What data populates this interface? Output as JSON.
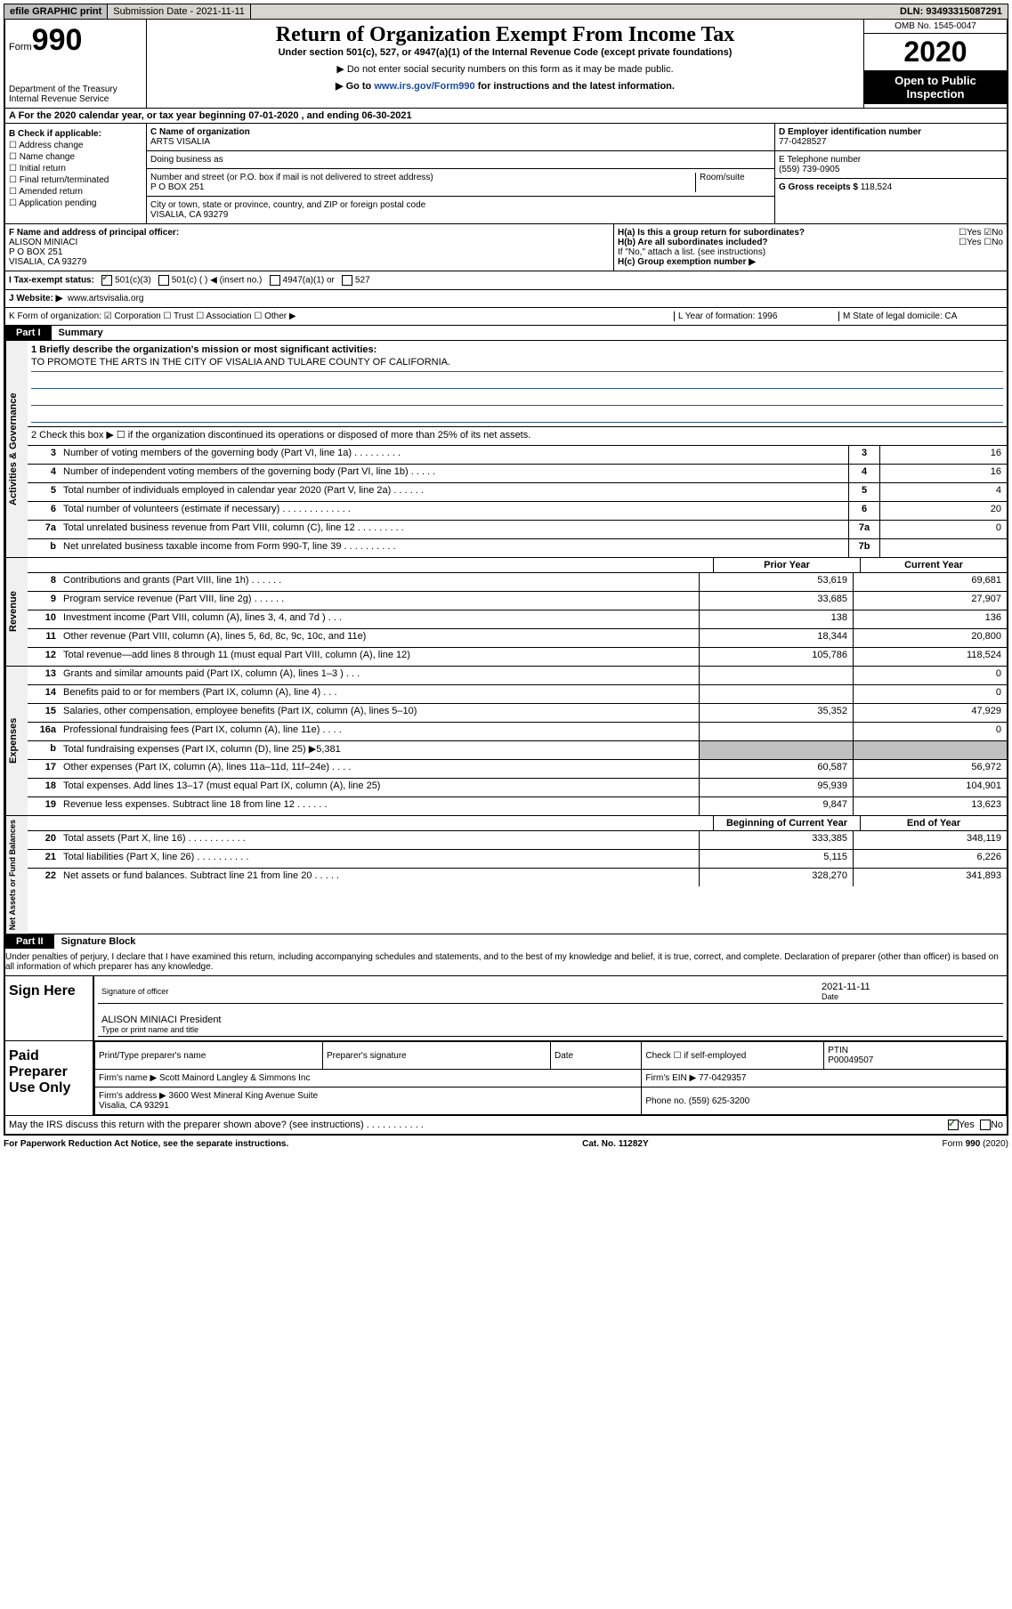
{
  "topbar": {
    "efile": "efile GRAPHIC print",
    "subdate_label": "Submission Date -",
    "subdate": "2021-11-11",
    "dln_label": "DLN:",
    "dln": "93493315087291"
  },
  "header": {
    "form_label": "Form",
    "form_num": "990",
    "dept": "Department of the Treasury\nInternal Revenue Service",
    "title": "Return of Organization Exempt From Income Tax",
    "sub1": "Under section 501(c), 527, or 4947(a)(1) of the Internal Revenue Code (except private foundations)",
    "sub2": "▶ Do not enter social security numbers on this form as it may be made public.",
    "sub3_pre": "▶ Go to ",
    "sub3_link": "www.irs.gov/Form990",
    "sub3_post": " for instructions and the latest information.",
    "omb": "OMB No. 1545-0047",
    "year": "2020",
    "inspect": "Open to Public Inspection"
  },
  "rowA": "A For the 2020 calendar year, or tax year beginning 07-01-2020    , and ending 06-30-2021",
  "colB": {
    "heading": "B Check if applicable:",
    "items": [
      "☐ Address change",
      "☐ Name change",
      "☐ Initial return",
      "☐ Final return/terminated",
      "☐ Amended return",
      "☐ Application pending"
    ]
  },
  "colC": {
    "name_label": "C Name of organization",
    "name": "ARTS VISALIA",
    "dba_label": "Doing business as",
    "addr_label": "Number and street (or P.O. box if mail is not delivered to street address)",
    "room_label": "Room/suite",
    "addr": "P O BOX 251",
    "city_label": "City or town, state or province, country, and ZIP or foreign postal code",
    "city": "VISALIA, CA   93279"
  },
  "colD": {
    "ein_label": "D Employer identification number",
    "ein": "77-0428527",
    "phone_label": "E Telephone number",
    "phone": "(559) 739-0905",
    "gross_label": "G Gross receipts $",
    "gross": "118,524"
  },
  "rowF": {
    "label": "F  Name and address of principal officer:",
    "name": "ALISON MINIACI",
    "addr1": "P O BOX 251",
    "addr2": "VISALIA, CA   93279"
  },
  "rowH": {
    "ha": "H(a)  Is this a group return for subordinates?",
    "hb": "H(b)  Are all subordinates included?",
    "hb_note": "If \"No,\" attach a list. (see instructions)",
    "hc": "H(c)  Group exemption number ▶",
    "yes": "Yes",
    "no": "No"
  },
  "taxI": "I  Tax-exempt status:",
  "tax_opts": [
    "501(c)(3)",
    "501(c) (  ) ◀ (insert no.)",
    "4947(a)(1) or",
    "527"
  ],
  "webJ_label": "J  Website: ▶",
  "webJ": "www.artsvisalia.org",
  "rowK": "K Form of organization:   ☑ Corporation  ☐ Trust  ☐ Association  ☐ Other ▶",
  "rowL": "L Year of formation: 1996",
  "rowM": "M State of legal domicile: CA",
  "part1": {
    "tab": "Part I",
    "title": "Summary"
  },
  "mission_label": "1  Briefly describe the organization's mission or most significant activities:",
  "mission": "TO PROMOTE THE ARTS IN THE CITY OF VISALIA AND TULARE COUNTY OF CALIFORNIA.",
  "line2": "2    Check this box ▶ ☐  if the organization discontinued its operations or disposed of more than 25% of its net assets.",
  "gov_label": "Activities & Governance",
  "gov_lines": [
    {
      "n": "3",
      "t": "Number of voting members of the governing body (Part VI, line 1a)  .    .    .    .    .    .    .    .    .",
      "b": "3",
      "v": "16"
    },
    {
      "n": "4",
      "t": "Number of independent voting members of the governing body (Part VI, line 1b)    .    .    .    .    .",
      "b": "4",
      "v": "16"
    },
    {
      "n": "5",
      "t": "Total number of individuals employed in calendar year 2020 (Part V, line 2a)   .    .    .    .    .    .",
      "b": "5",
      "v": "4"
    },
    {
      "n": "6",
      "t": "Total number of volunteers (estimate if necessary)   .    .    .    .    .    .    .    .    .    .    .    .    .",
      "b": "6",
      "v": "20"
    },
    {
      "n": "7a",
      "t": "Total unrelated business revenue from Part VIII, column (C), line 12   .    .    .    .    .    .    .    .    .",
      "b": "7a",
      "v": "0"
    },
    {
      "n": "b",
      "t": "Net unrelated business taxable income from Form 990-T, line 39   .    .    .    .    .    .    .    .    .    .",
      "b": "7b",
      "v": ""
    }
  ],
  "rev_label": "Revenue",
  "prior_hdr": "Prior Year",
  "curr_hdr": "Current Year",
  "rev_lines": [
    {
      "n": "8",
      "t": "Contributions and grants (Part VIII, line 1h)     .      .      .      .      .      .",
      "p": "53,619",
      "c": "69,681"
    },
    {
      "n": "9",
      "t": "Program service revenue (Part VIII, line 2g)     .      .      .      .      .      .",
      "p": "33,685",
      "c": "27,907"
    },
    {
      "n": "10",
      "t": "Investment income (Part VIII, column (A), lines 3, 4, and 7d )     .      .      .",
      "p": "138",
      "c": "136"
    },
    {
      "n": "11",
      "t": "Other revenue (Part VIII, column (A), lines 5, 6d, 8c, 9c, 10c, and 11e)",
      "p": "18,344",
      "c": "20,800"
    },
    {
      "n": "12",
      "t": "Total revenue—add lines 8 through 11 (must equal Part VIII, column (A), line 12)",
      "p": "105,786",
      "c": "118,524"
    }
  ],
  "exp_label": "Expenses",
  "exp_lines": [
    {
      "n": "13",
      "t": "Grants and similar amounts paid (Part IX, column (A), lines 1–3 )     .      .      .",
      "p": "",
      "c": "0"
    },
    {
      "n": "14",
      "t": "Benefits paid to or for members (Part IX, column (A), line 4)     .      .      .",
      "p": "",
      "c": "0"
    },
    {
      "n": "15",
      "t": "Salaries, other compensation, employee benefits (Part IX, column (A), lines 5–10)",
      "p": "35,352",
      "c": "47,929"
    },
    {
      "n": "16a",
      "t": "Professional fundraising fees (Part IX, column (A), line 11e)     .      .      .      .",
      "p": "",
      "c": "0"
    },
    {
      "n": "b",
      "t": "Total fundraising expenses (Part IX, column (D), line 25) ▶5,381",
      "p": "SHADE",
      "c": "SHADE"
    },
    {
      "n": "17",
      "t": "Other expenses (Part IX, column (A), lines 11a–11d, 11f–24e)     .      .      .      .",
      "p": "60,587",
      "c": "56,972"
    },
    {
      "n": "18",
      "t": "Total expenses. Add lines 13–17 (must equal Part IX, column (A), line 25)",
      "p": "95,939",
      "c": "104,901"
    },
    {
      "n": "19",
      "t": "Revenue less expenses. Subtract line 18 from line 12   .      .      .      .      .      .",
      "p": "9,847",
      "c": "13,623"
    }
  ],
  "na_label": "Net Assets or Fund Balances",
  "begin_hdr": "Beginning of Current Year",
  "end_hdr": "End of Year",
  "na_lines": [
    {
      "n": "20",
      "t": "Total assets (Part X, line 16)   .      .      .      .      .      .      .      .      .      .      .",
      "p": "333,385",
      "c": "348,119"
    },
    {
      "n": "21",
      "t": "Total liabilities (Part X, line 26)     .      .      .      .      .      .      .      .      .      .",
      "p": "5,115",
      "c": "6,226"
    },
    {
      "n": "22",
      "t": "Net assets or fund balances. Subtract line 21 from line 20   .      .      .      .      .",
      "p": "328,270",
      "c": "341,893"
    }
  ],
  "part2": {
    "tab": "Part II",
    "title": "Signature Block"
  },
  "perjury": "Under penalties of perjury, I declare that I have examined this return, including accompanying schedules and statements, and to the best of my knowledge and belief, it is true, correct, and complete. Declaration of preparer (other than officer) is based on all information of which preparer has any knowledge.",
  "sign": {
    "here": "Sign Here",
    "sig_officer": "Signature of officer",
    "date_label": "Date",
    "date": "2021-11-11",
    "typed": "ALISON MINIACI President",
    "typed_label": "Type or print name and title"
  },
  "prep": {
    "label": "Paid Preparer Use Only",
    "h1": "Print/Type preparer's name",
    "h2": "Preparer's signature",
    "h3": "Date",
    "h4_check": "Check ☐ if self-employed",
    "h4_ptin_label": "PTIN",
    "h4_ptin": "P00049507",
    "firm_name_label": "Firm's name    ▶",
    "firm_name": "Scott Mainord Langley & Simmons Inc",
    "firm_ein_label": "Firm's EIN ▶",
    "firm_ein": "77-0429357",
    "firm_addr_label": "Firm's address ▶",
    "firm_addr1": "3600 West Mineral King Avenue Suite",
    "firm_addr2": "Visalia, CA   93291",
    "phone_label": "Phone no.",
    "phone": "(559) 625-3200"
  },
  "discuss": "May the IRS discuss this return with the preparer shown above? (see instructions)    .    .    .    .    .    .    .    .    .    .    .",
  "footer": {
    "left": "For Paperwork Reduction Act Notice, see the separate instructions.",
    "mid": "Cat. No. 11282Y",
    "right": "Form 990 (2020)"
  }
}
